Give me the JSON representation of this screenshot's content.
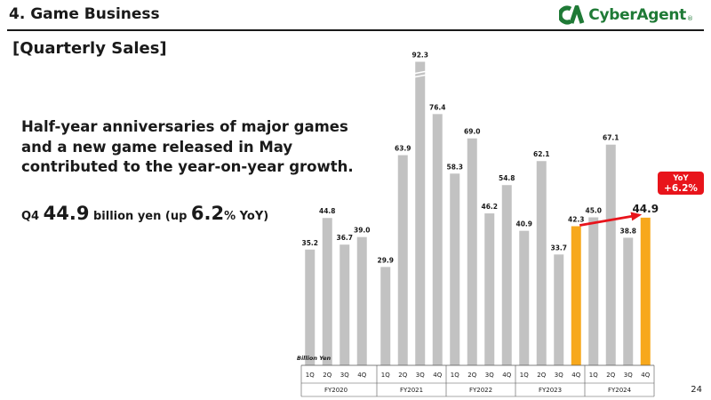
{
  "header": {
    "title": "4. Game Business",
    "logo_text": "CyberAgent"
  },
  "subtitle": "[Quarterly Sales]",
  "description": "Half-year anniversaries of major games and a new game released in May contributed to the year-on-year growth.",
  "highlight": {
    "prefix": "Q4 ",
    "value": "44.9",
    "unit": " billion yen (up ",
    "pct": "6.2",
    "suffix": "% YoY)"
  },
  "page_number": "24",
  "colors": {
    "bar_default": "#c2c2c2",
    "bar_highlight": "#f7a81c",
    "arrow": "#e8141b",
    "logo": "#1f7a36"
  },
  "chart_data": {
    "type": "bar",
    "unit_label": "Billion Yen",
    "groups": [
      "FY2020",
      "FY2021",
      "FY2022",
      "FY2023",
      "FY2024"
    ],
    "quarters": [
      "1Q",
      "2Q",
      "3Q",
      "4Q"
    ],
    "values": [
      [
        35.2,
        44.8,
        36.7,
        39.0
      ],
      [
        29.9,
        63.9,
        92.3,
        76.4
      ],
      [
        58.3,
        69.0,
        46.2,
        54.8
      ],
      [
        40.9,
        62.1,
        33.7,
        42.3
      ],
      [
        45.0,
        67.1,
        38.8,
        44.9
      ]
    ],
    "highlighted": [
      "FY2023 4Q",
      "FY2024 4Q"
    ],
    "yoy_badge": {
      "title": "YoY",
      "value": "+6.2%"
    }
  }
}
